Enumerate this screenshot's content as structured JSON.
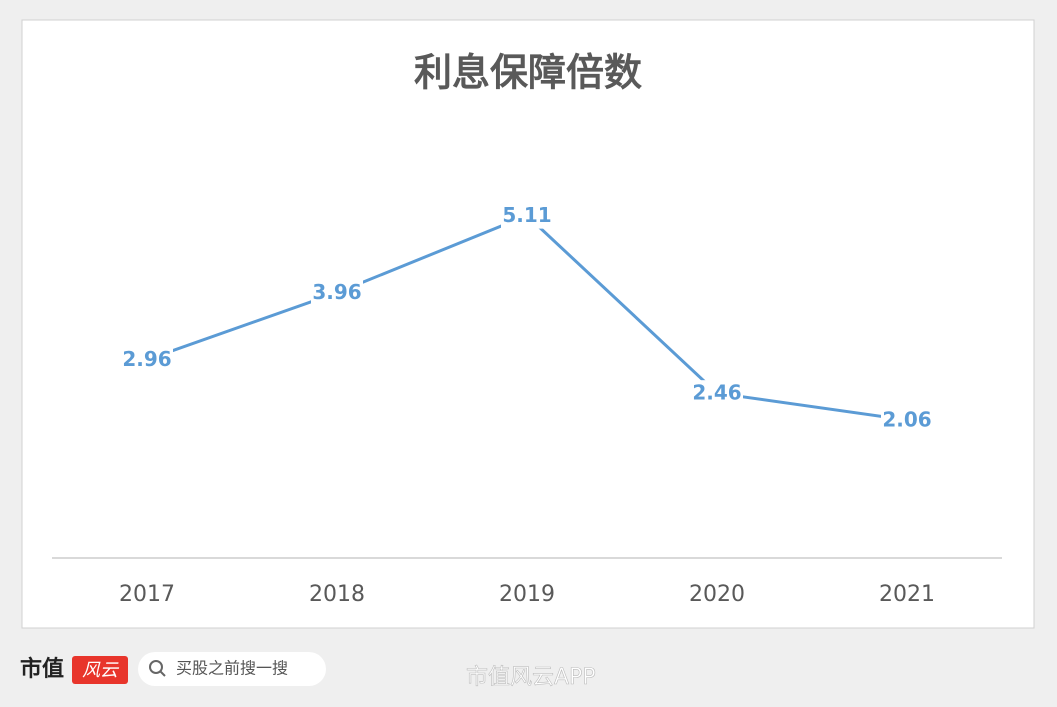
{
  "chart_data": {
    "type": "line",
    "title": "利息保障倍数",
    "categories": [
      "2017",
      "2018",
      "2019",
      "2020",
      "2021"
    ],
    "series": [
      {
        "name": "利息保障倍数",
        "color": "#5b9bd5",
        "values": [
          2.96,
          3.96,
          5.11,
          2.46,
          2.06
        ]
      }
    ],
    "ylim": [
      0,
      6
    ],
    "grid": false
  },
  "footer": {
    "logo": "市值",
    "logo_badge": "风云",
    "search": "买股之前搜一搜",
    "watermark": "市值风云APP"
  }
}
